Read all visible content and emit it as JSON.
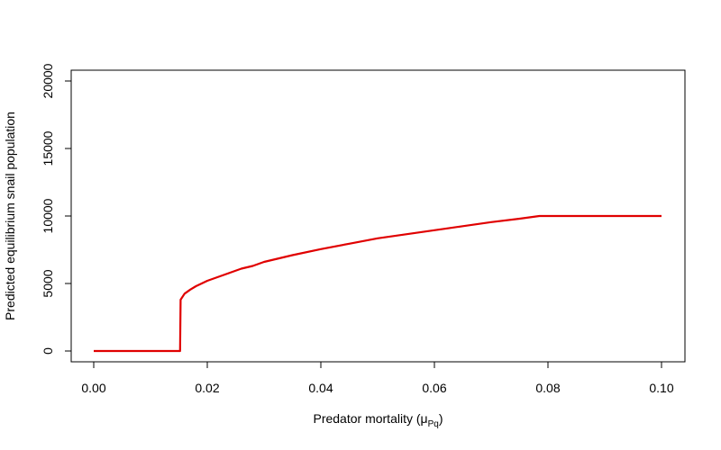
{
  "chart_data": {
    "type": "line",
    "title": "",
    "xlabel": {
      "main": "Predator mortality (",
      "symbol": "μ",
      "subscript": "Pq",
      "close": ")"
    },
    "ylabel": "Predicted equilibrium snail population",
    "xlim": [
      0.0,
      0.1
    ],
    "ylim": [
      0,
      20000
    ],
    "x_ticks": [
      0.0,
      0.02,
      0.04,
      0.06,
      0.08,
      0.1
    ],
    "x_tick_labels": [
      "0.00",
      "0.02",
      "0.04",
      "0.06",
      "0.08",
      "0.10"
    ],
    "y_ticks": [
      0,
      5000,
      10000,
      15000,
      20000
    ],
    "y_tick_labels": [
      "0",
      "5000",
      "10000",
      "15000",
      "20000"
    ],
    "grid": false,
    "series": [
      {
        "color": "#e00000",
        "x": [
          0.0,
          0.005,
          0.01,
          0.0152,
          0.0153,
          0.016,
          0.017,
          0.018,
          0.019,
          0.02,
          0.022,
          0.024,
          0.026,
          0.028,
          0.03,
          0.035,
          0.04,
          0.045,
          0.05,
          0.055,
          0.06,
          0.065,
          0.07,
          0.075,
          0.0785,
          0.08,
          0.085,
          0.09,
          0.095,
          0.1
        ],
        "y": [
          0,
          0,
          0,
          0,
          3800,
          4250,
          4550,
          4800,
          5000,
          5200,
          5500,
          5800,
          6100,
          6300,
          6600,
          7100,
          7550,
          7950,
          8350,
          8650,
          8950,
          9250,
          9550,
          9800,
          10000,
          10000,
          10000,
          10000,
          10000,
          10000
        ]
      }
    ]
  }
}
